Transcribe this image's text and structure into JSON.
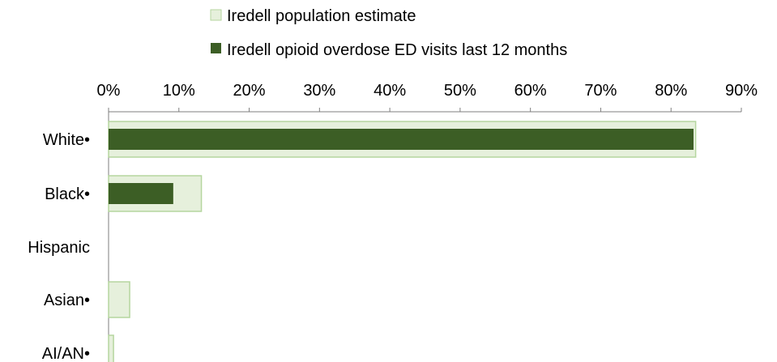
{
  "chart_data": {
    "type": "bar",
    "orientation": "horizontal",
    "categories": [
      "White•",
      "Black•",
      "Hispanic",
      "Asian•",
      "AI/AN•"
    ],
    "series": [
      {
        "name": "Iredell population estimate",
        "values": [
          83.5,
          13.2,
          0,
          3.0,
          0.7
        ],
        "color": "#e6f0dc",
        "stroke": "#b5d69f"
      },
      {
        "name": "Iredell opioid overdose ED visits last 12 months",
        "values": [
          83.2,
          9.2,
          0,
          0,
          0
        ],
        "color": "#3c5e25"
      }
    ],
    "xlim": [
      0,
      90
    ],
    "xticks": [
      "0%",
      "10%",
      "20%",
      "30%",
      "40%",
      "50%",
      "60%",
      "70%",
      "80%",
      "90%"
    ],
    "axis_position": "top",
    "legend_position": "top",
    "grid": false,
    "axis_color": "#7f7f7f"
  }
}
